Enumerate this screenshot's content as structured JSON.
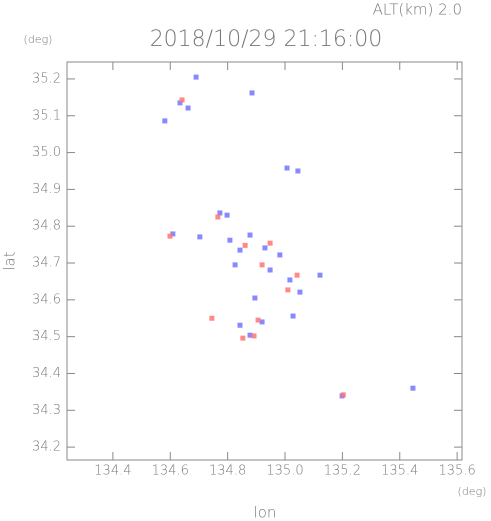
{
  "chart_data": {
    "type": "scatter",
    "title": "2018/10/29 21:16:00",
    "subtitle": "ALT(km) 2.0",
    "x_label": "lon",
    "y_label": "lat",
    "x_unit": "(deg)",
    "y_unit": "(deg)",
    "xlim": [
      134.24,
      135.617
    ],
    "ylim": [
      34.165,
      35.246
    ],
    "xticks": [
      134.4,
      134.6,
      134.8,
      {
        "value": 135,
        "label": "135.0"
      },
      135.2,
      135.4,
      135.6
    ],
    "yticks": [
      34.2,
      34.3,
      34.4,
      34.5,
      34.6,
      34.7,
      34.8,
      34.9,
      {
        "value": 35,
        "label": "35.0"
      },
      35.1,
      35.2
    ],
    "series": [
      {
        "color": "#7474ff",
        "x": [
          134.69,
          134.634,
          134.662,
          134.885,
          134.581,
          135.007,
          135.045,
          134.773,
          134.798,
          134.609,
          134.703,
          134.808,
          134.843,
          134.878,
          134.93,
          134.982,
          134.826,
          134.948,
          135.017,
          135.052,
          134.895,
          134.843,
          134.878,
          134.92,
          135.122,
          135.199,
          135.446,
          135.028
        ],
        "values": [
          35.205,
          35.135,
          35.121,
          35.162,
          35.086,
          34.958,
          34.95,
          34.836,
          34.83,
          34.779,
          34.771,
          34.762,
          34.735,
          34.776,
          34.741,
          34.722,
          34.695,
          34.681,
          34.654,
          34.621,
          34.605,
          34.531,
          34.504,
          34.54,
          34.667,
          34.339,
          34.36,
          34.556
        ]
      },
      {
        "color": "#ff7474",
        "x": [
          134.641,
          134.599,
          134.766,
          134.861,
          134.948,
          134.92,
          135.01,
          135.042,
          134.853,
          134.892,
          134.906,
          135.203,
          134.745
        ],
        "values": [
          35.143,
          34.773,
          34.825,
          34.748,
          34.754,
          34.695,
          34.627,
          34.667,
          34.496,
          34.502,
          34.545,
          34.342,
          34.55
        ]
      }
    ]
  }
}
